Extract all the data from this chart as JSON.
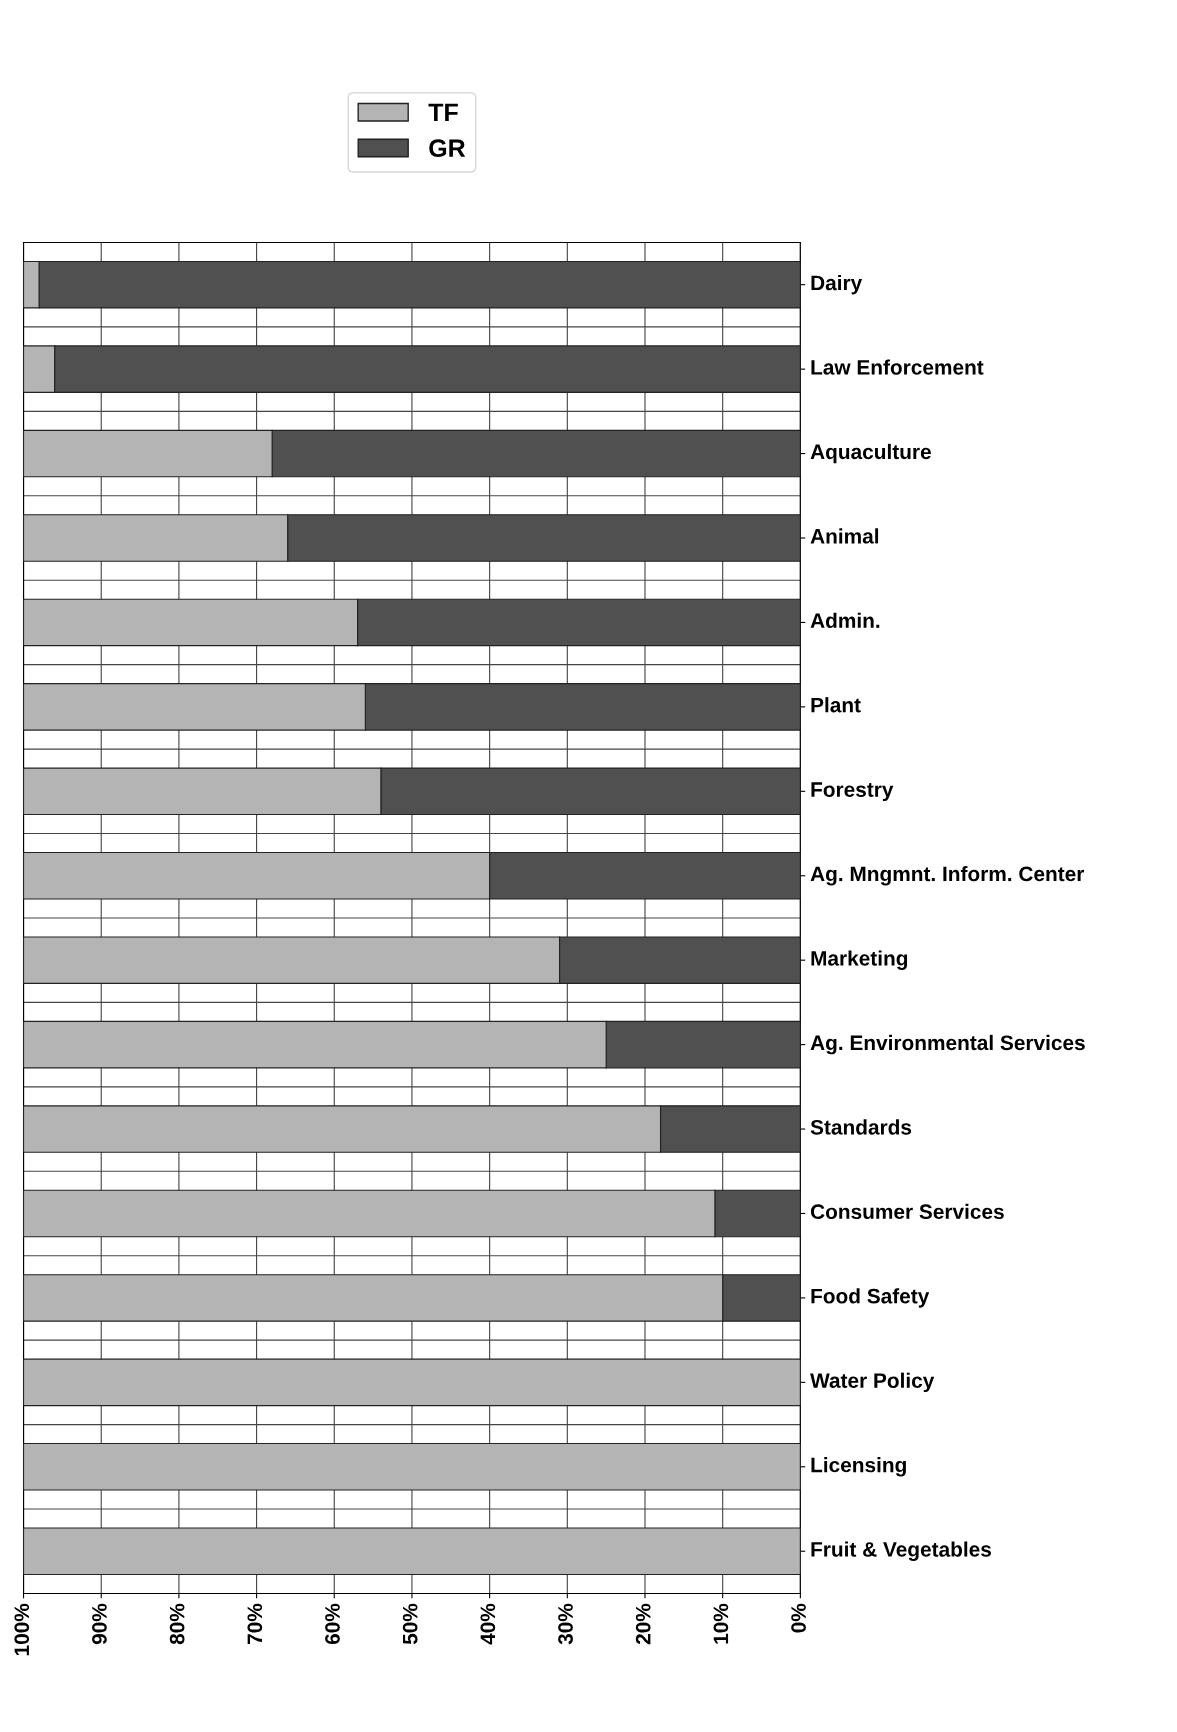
{
  "chart_data": {
    "type": "bar",
    "orientation": "horizontal",
    "stacked": true,
    "categories": [
      "Dairy",
      "Law Enforcement",
      "Aquaculture",
      "Animal",
      "Admin.",
      "Plant",
      "Forestry",
      "Ag. Mngmnt. Inform. Center",
      "Marketing",
      "Ag. Environmental Services",
      "Standards",
      "Consumer Services",
      "Food Safety",
      "Water Policy",
      "Licensing",
      "Fruit & Vegetables"
    ],
    "series": [
      {
        "name": "GR",
        "color": "#505050",
        "values": [
          98,
          96,
          68,
          66,
          57,
          56,
          54,
          40,
          31,
          25,
          18,
          11,
          10,
          0,
          0,
          0
        ]
      },
      {
        "name": "TF",
        "color": "#b4b4b4",
        "values": [
          2,
          4,
          32,
          34,
          43,
          44,
          46,
          60,
          69,
          75,
          82,
          89,
          90,
          100,
          100,
          100
        ]
      }
    ],
    "xlim": [
      100,
      0
    ],
    "xticks": [
      {
        "value": 100,
        "label": "100%"
      },
      {
        "value": 90,
        "label": "90%"
      },
      {
        "value": 80,
        "label": "80%"
      },
      {
        "value": 70,
        "label": "70%"
      },
      {
        "value": 60,
        "label": "60%"
      },
      {
        "value": 50,
        "label": "50%"
      },
      {
        "value": 40,
        "label": "40%"
      },
      {
        "value": 30,
        "label": "30%"
      },
      {
        "value": 20,
        "label": "20%"
      },
      {
        "value": 10,
        "label": "10%"
      },
      {
        "value": 0,
        "label": "0%"
      }
    ],
    "grid": true,
    "legend": "top"
  }
}
